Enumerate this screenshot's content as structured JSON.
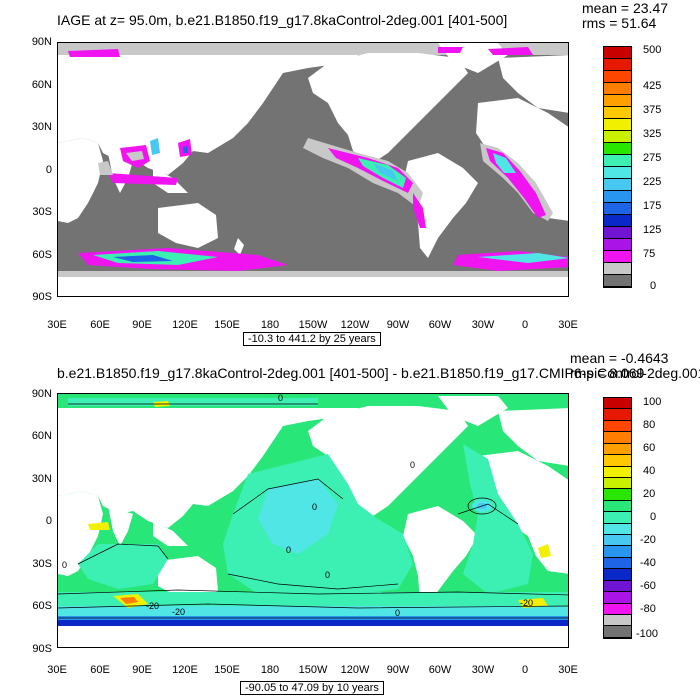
{
  "panels": [
    {
      "title": "IAGE at z=  95.0m, b.e21.B1850.f19_g17.8kaControl-2deg.001 [401-500]",
      "mean": "mean = 23.47",
      "rms": "rms = 51.64",
      "contour_info": "-10.3 to 441.2 by 25 years",
      "colorbar_labels": [
        "500",
        "425",
        "375",
        "325",
        "275",
        "225",
        "175",
        "125",
        "75",
        "0"
      ],
      "colorbar_colors": [
        "#c80000",
        "#e61900",
        "#ff4600",
        "#ff7d00",
        "#ffa000",
        "#ffc800",
        "#f0f000",
        "#c8f000",
        "#28e600",
        "#3cf0b4",
        "#50e6e6",
        "#46c8f0",
        "#2896f0",
        "#1e64e6",
        "#0a28c8",
        "#6e14d2",
        "#aa14e6",
        "#f014f0",
        "#c8c8c8",
        "#737373"
      ],
      "colors": {
        "ocean": "#737373",
        "land": "#ffffff",
        "ice": "#c8c8c8",
        "magenta": "#f014f0",
        "violet": "#aa14e6",
        "cyan": "#3cf0b4",
        "aqua": "#50e6e6",
        "sky": "#46c8f0",
        "blue": "#1e64e6"
      }
    },
    {
      "title": "b.e21.B1850.f19_g17.8kaControl-2deg.001 [401-500] - b.e21.B1850.f19_g17.CMIP6-piControl-2deg.001",
      "mean": "mean = -0.4643",
      "rms": "rms = 8.069",
      "contour_info": "-90.05 to 47.09 by 10 years",
      "colorbar_labels": [
        "100",
        "80",
        "60",
        "40",
        "20",
        "0",
        "-20",
        "-40",
        "-60",
        "-80",
        "-100"
      ],
      "colorbar_colors": [
        "#c80000",
        "#e61900",
        "#ff4600",
        "#ff7d00",
        "#ffa000",
        "#ffc800",
        "#f0f000",
        "#c8f000",
        "#28e600",
        "#28e678",
        "#3cf0b4",
        "#50e6e6",
        "#46c8f0",
        "#2896f0",
        "#1e64e6",
        "#0a28c8",
        "#6e14d2",
        "#aa14e6",
        "#f014f0",
        "#c8c8c8",
        "#737373"
      ],
      "contour_labels": [
        "0",
        "0",
        "0",
        "0",
        "0",
        "0",
        "0",
        "-20",
        "-20",
        "-20"
      ],
      "colors": {
        "green": "#28e678",
        "cyan": "#3cf0b4",
        "aqua": "#50e6e6",
        "land": "#ffffff",
        "yellow": "#f0f000",
        "orange": "#ff7d00",
        "blue": "#1e64e6",
        "navy": "#0a28c8"
      }
    }
  ],
  "lat_labels": [
    "90N",
    "60N",
    "30N",
    "0",
    "30S",
    "60S",
    "90S"
  ],
  "lon_labels": [
    "30E",
    "60E",
    "90E",
    "120E",
    "150E",
    "180",
    "150W",
    "120W",
    "90W",
    "60W",
    "30W",
    "0",
    "30E"
  ]
}
